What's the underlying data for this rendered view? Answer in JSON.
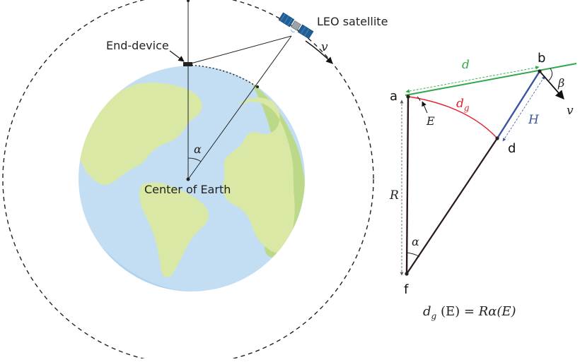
{
  "left_diagram": {
    "end_device_label": "End-device",
    "satellite_label": "LEO satellite",
    "velocity_label": "v",
    "angle_label": "α",
    "center_label": "Center of Earth"
  },
  "right_diagram": {
    "points": {
      "a": "a",
      "b": "b",
      "d": "d",
      "f": "f"
    },
    "distance_label": "d",
    "ground_distance_label": "d",
    "ground_distance_sub": "g",
    "elevation_label": "E",
    "height_label": "H",
    "radius_label": "R",
    "angle_alpha_label": "α",
    "angle_beta_label": "β",
    "velocity_label": "v",
    "formula": {
      "lhs_var": "d",
      "lhs_sub": "g",
      "lhs_arg": " (E) = ",
      "rhs": "Rα(E)"
    }
  },
  "colors": {
    "ocean": "#c3def3",
    "land": "#d9e8a4",
    "land_shadow": "#bcd98a",
    "orbit": "#222222",
    "line_of_sight": "#2ea84a",
    "ground_arc": "#e8202a",
    "height": "#3a55a4",
    "distance_label": "#3aa848",
    "satellite_body": "#1f5e96"
  }
}
